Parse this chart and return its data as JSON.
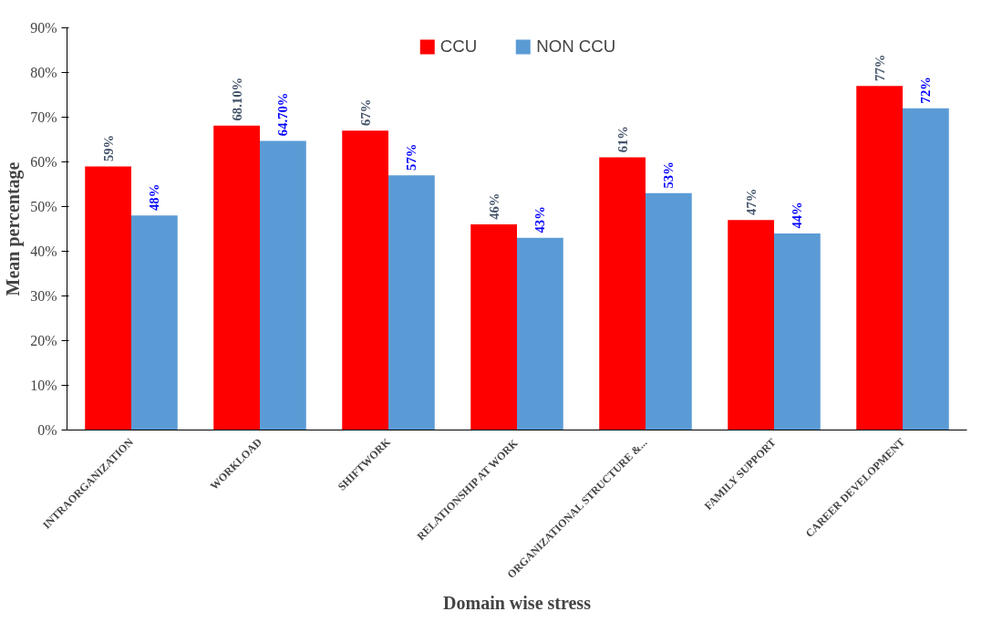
{
  "chart_data": {
    "type": "bar",
    "xlabel": "Domain wise stress",
    "ylabel": "Mean percentage",
    "categories": [
      "INTRAORGANIZATION",
      "WORKLOAD",
      "SHIFTWORK",
      "RELATIONSHIP AT WORK",
      "ORGANIZATIONAL STRUCTURE &...",
      "FAMILY SUPPORT",
      "CAREER DEVELOPMENT"
    ],
    "series": [
      {
        "name": "CCU",
        "color": "#ff0000",
        "values": [
          59,
          68.1,
          67,
          46,
          61,
          47,
          77
        ],
        "value_labels": [
          "59%",
          "68.10%",
          "67%",
          "46%",
          "61%",
          "47%",
          "77%"
        ]
      },
      {
        "name": "NON CCU",
        "color": "#5b9bd5",
        "values": [
          48,
          64.7,
          57,
          43,
          53,
          44,
          72
        ],
        "value_labels": [
          "48%",
          "64.70%",
          "57%",
          "43%",
          "53%",
          "44%",
          "72%"
        ]
      }
    ],
    "ylim": [
      0,
      90
    ],
    "yticks": [
      {
        "value": 0,
        "label": "0%"
      },
      {
        "value": 10,
        "label": "10%"
      },
      {
        "value": 20,
        "label": "20%"
      },
      {
        "value": 30,
        "label": "30%"
      },
      {
        "value": 40,
        "label": "40%"
      },
      {
        "value": 50,
        "label": "50%"
      },
      {
        "value": 60,
        "label": "60%"
      },
      {
        "value": 70,
        "label": "70%"
      },
      {
        "value": 80,
        "label": "80%"
      },
      {
        "value": 90,
        "label": "90%"
      }
    ],
    "grid": false,
    "legend": "top"
  }
}
